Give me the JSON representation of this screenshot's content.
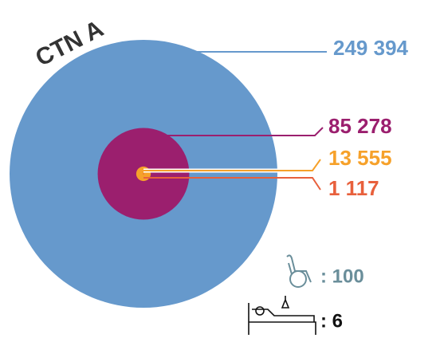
{
  "chart_data": {
    "type": "nested-circles",
    "title": "CTN A",
    "values": [
      249394,
      85278,
      13555,
      1117
    ],
    "value_labels": [
      "249 394",
      "85 278",
      "13 555",
      "1 117"
    ],
    "colors": [
      "#6699cc",
      "#9b1f6e",
      "#f6a12a",
      "#e8603c"
    ],
    "extras": {
      "values": [
        100,
        6
      ],
      "value_labels": [
        ": 100",
        ": 6"
      ],
      "colors": [
        "#6a8e9a",
        "#111111"
      ]
    }
  }
}
